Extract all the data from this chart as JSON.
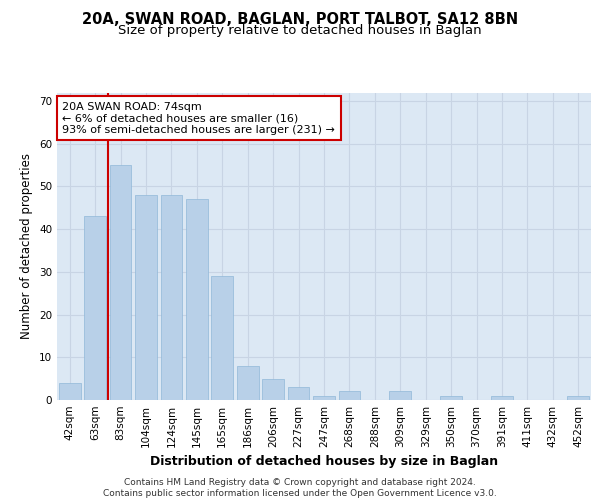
{
  "title1": "20A, SWAN ROAD, BAGLAN, PORT TALBOT, SA12 8BN",
  "title2": "Size of property relative to detached houses in Baglan",
  "xlabel": "Distribution of detached houses by size in Baglan",
  "ylabel": "Number of detached properties",
  "categories": [
    "42sqm",
    "63sqm",
    "83sqm",
    "104sqm",
    "124sqm",
    "145sqm",
    "165sqm",
    "186sqm",
    "206sqm",
    "227sqm",
    "247sqm",
    "268sqm",
    "288sqm",
    "309sqm",
    "329sqm",
    "350sqm",
    "370sqm",
    "391sqm",
    "411sqm",
    "432sqm",
    "452sqm"
  ],
  "values": [
    4,
    43,
    55,
    48,
    48,
    47,
    29,
    8,
    5,
    3,
    1,
    2,
    0,
    2,
    0,
    1,
    0,
    1,
    0,
    0,
    1
  ],
  "bar_color": "#b8d0e8",
  "bar_edge_color": "#90b8d8",
  "grid_color": "#c8d4e4",
  "background_color": "#dce8f4",
  "vline_color": "#cc0000",
  "annotation_text": "20A SWAN ROAD: 74sqm\n← 6% of detached houses are smaller (16)\n93% of semi-detached houses are larger (231) →",
  "annotation_box_color": "#ffffff",
  "annotation_border_color": "#cc0000",
  "ylim": [
    0,
    72
  ],
  "yticks": [
    0,
    10,
    20,
    30,
    40,
    50,
    60,
    70
  ],
  "footer_text": "Contains HM Land Registry data © Crown copyright and database right 2024.\nContains public sector information licensed under the Open Government Licence v3.0.",
  "title_fontsize": 10.5,
  "subtitle_fontsize": 9.5,
  "axis_label_fontsize": 8.5,
  "tick_fontsize": 7.5,
  "annotation_fontsize": 8,
  "footer_fontsize": 6.5
}
